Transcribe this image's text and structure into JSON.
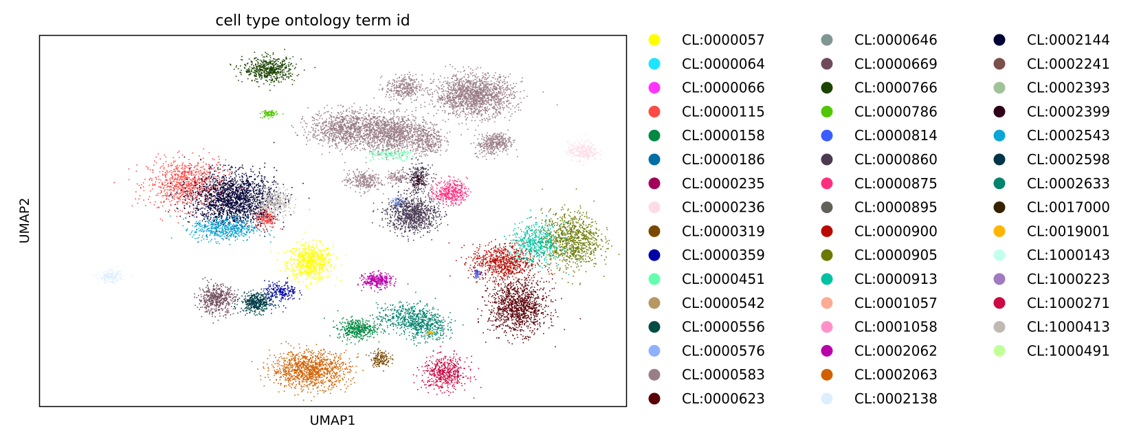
{
  "chart_data": {
    "type": "scatter",
    "title": "cell type ontology term id",
    "xlabel": "UMAP1",
    "ylabel": "UMAP2",
    "xlim": [
      0,
      100
    ],
    "ylim": [
      0,
      100
    ],
    "grid": false,
    "legend_position": "right",
    "legend_columns": 3,
    "series": [
      {
        "name": "CL:0000057",
        "color": "#ffff00",
        "clusters": [
          [
            46,
            39,
            3.5,
            4.5,
            700
          ]
        ]
      },
      {
        "name": "CL:0000064",
        "color": "#1ce6ff",
        "clusters": []
      },
      {
        "name": "CL:0000066",
        "color": "#ff34ff",
        "clusters": []
      },
      {
        "name": "CL:0000115",
        "color": "#ff4a46",
        "clusters": [
          [
            25,
            60,
            6,
            6,
            900
          ],
          [
            38.5,
            51,
            1.6,
            2.5,
            200
          ]
        ]
      },
      {
        "name": "CL:0000158",
        "color": "#008941",
        "clusters": [
          [
            54,
            21,
            3,
            2.5,
            400
          ]
        ]
      },
      {
        "name": "CL:0000186",
        "color": "#006fa6",
        "clusters": []
      },
      {
        "name": "CL:0000235",
        "color": "#a30059",
        "clusters": []
      },
      {
        "name": "CL:0000236",
        "color": "#ffdbe5",
        "clusters": [
          [
            92.5,
            69,
            2.3,
            2.3,
            250
          ]
        ]
      },
      {
        "name": "CL:0000319",
        "color": "#7a4900",
        "clusters": [
          [
            58,
            13,
            1.5,
            2,
            150
          ]
        ]
      },
      {
        "name": "CL:0000359",
        "color": "#0000a6",
        "clusters": [
          [
            41,
            31,
            2.5,
            2.5,
            200
          ]
        ]
      },
      {
        "name": "CL:0000451",
        "color": "#63ffac",
        "clusters": [
          [
            60,
            68,
            4,
            1.5,
            150
          ]
        ]
      },
      {
        "name": "CL:0000542",
        "color": "#b79762",
        "clusters": []
      },
      {
        "name": "CL:0000556",
        "color": "#004d43",
        "clusters": [
          [
            37,
            28,
            2.5,
            2.5,
            250
          ]
        ]
      },
      {
        "name": "CL:0000576",
        "color": "#8fb0ff",
        "clusters": [
          [
            61,
            55,
            1,
            1.5,
            80
          ]
        ]
      },
      {
        "name": "CL:0000583",
        "color": "#997d87",
        "clusters": [
          [
            74,
            84,
            6,
            5,
            1500
          ],
          [
            60,
            74,
            5,
            4.5,
            1000
          ],
          [
            52,
            75,
            5.5,
            4.5,
            900
          ],
          [
            62,
            86,
            2.8,
            3.2,
            300
          ],
          [
            77,
            70.5,
            2.8,
            2.5,
            200
          ],
          [
            78,
            72,
            2,
            1.8,
            150
          ],
          [
            55,
            61,
            2.8,
            2.5,
            250
          ],
          [
            61,
            62,
            1.5,
            1.5,
            100
          ],
          [
            66,
            72,
            2.5,
            4,
            300
          ]
        ]
      },
      {
        "name": "CL:0000623",
        "color": "#5a0007",
        "clusters": [
          [
            81.5,
            27,
            4.5,
            6.5,
            1100
          ]
        ]
      },
      {
        "name": "CL:0000646",
        "color": "#809693",
        "clusters": []
      },
      {
        "name": "CL:0000669",
        "color": "#6f4a5a",
        "clusters": [
          [
            30,
            29,
            2.8,
            3.5,
            450
          ]
        ]
      },
      {
        "name": "CL:0000766",
        "color": "#1b4400",
        "clusters": [
          [
            39,
            91,
            4,
            3,
            550
          ]
        ]
      },
      {
        "name": "CL:0000786",
        "color": "#4fc601",
        "clusters": [
          [
            39,
            79,
            1.2,
            1,
            80
          ]
        ]
      },
      {
        "name": "CL:0000814",
        "color": "#3b5dff",
        "clusters": [
          [
            74.5,
            36,
            0.8,
            1.2,
            40
          ]
        ]
      },
      {
        "name": "CL:0000860",
        "color": "#4a3b53",
        "clusters": [
          [
            63.5,
            52,
            4,
            4.5,
            900
          ],
          [
            64.5,
            62,
            2,
            3.5,
            200
          ]
        ]
      },
      {
        "name": "CL:0000875",
        "color": "#ff2f80",
        "clusters": [
          [
            70,
            58,
            2.5,
            3,
            350
          ]
        ]
      },
      {
        "name": "CL:0000895",
        "color": "#61615a",
        "clusters": []
      },
      {
        "name": "CL:0000900",
        "color": "#ba0900",
        "clusters": [
          [
            79,
            39,
            5,
            4.5,
            700
          ]
        ]
      },
      {
        "name": "CL:0000905",
        "color": "#6b7900",
        "clusters": [
          [
            90.5,
            45,
            4.5,
            7,
            900
          ]
        ]
      },
      {
        "name": "CL:0000913",
        "color": "#00c2a0",
        "clusters": [
          [
            84.5,
            44,
            4,
            5,
            500
          ]
        ]
      },
      {
        "name": "CL:0001057",
        "color": "#ffaa92",
        "clusters": []
      },
      {
        "name": "CL:0001058",
        "color": "#ff90c9",
        "clusters": []
      },
      {
        "name": "CL:0002062",
        "color": "#b903aa",
        "clusters": [
          [
            57.5,
            34,
            2.2,
            1.8,
            300
          ]
        ]
      },
      {
        "name": "CL:0002063",
        "color": "#d16100",
        "clusters": [
          [
            46,
            10,
            6,
            4.5,
            1100
          ]
        ]
      },
      {
        "name": "CL:0002138",
        "color": "#ddefff",
        "clusters": [
          [
            12,
            35,
            1.8,
            1.5,
            150
          ]
        ]
      },
      {
        "name": "CL:0002144",
        "color": "#000035",
        "clusters": [
          [
            33,
            56,
            6.5,
            6.5,
            1700
          ]
        ]
      },
      {
        "name": "CL:0002241",
        "color": "#7b4f4b",
        "clusters": []
      },
      {
        "name": "CL:0002393",
        "color": "#a1c299",
        "clusters": []
      },
      {
        "name": "CL:0002399",
        "color": "#300018",
        "clusters": [
          [
            64.5,
            61,
            1,
            1.8,
            60
          ]
        ]
      },
      {
        "name": "CL:0002543",
        "color": "#0aa6d8",
        "clusters": [
          [
            31.5,
            48,
            5,
            3,
            500
          ]
        ]
      },
      {
        "name": "CL:0002598",
        "color": "#013349",
        "clusters": [
          [
            36.5,
            28.5,
            2.2,
            2,
            150
          ]
        ]
      },
      {
        "name": "CL:0002633",
        "color": "#00846f",
        "clusters": [
          [
            63,
            24,
            5,
            3.5,
            500
          ],
          [
            66,
            21,
            3,
            3.5,
            250
          ]
        ]
      },
      {
        "name": "CL:0017000",
        "color": "#372101",
        "clusters": []
      },
      {
        "name": "CL:0019001",
        "color": "#ffb500",
        "clusters": [
          [
            66.5,
            20,
            0.6,
            0.6,
            20
          ]
        ]
      },
      {
        "name": "CL:1000143",
        "color": "#c2ffed",
        "clusters": []
      },
      {
        "name": "CL:1000223",
        "color": "#a079bf",
        "clusters": []
      },
      {
        "name": "CL:1000271",
        "color": "#cc0744",
        "clusters": [
          [
            69,
            9,
            3.5,
            4,
            500
          ]
        ]
      },
      {
        "name": "CL:1000413",
        "color": "#c0b9b2",
        "clusters": [
          [
            40,
            55,
            2.5,
            3.5,
            300
          ]
        ]
      },
      {
        "name": "CL:1000491",
        "color": "#c2ff99",
        "clusters": []
      }
    ]
  }
}
